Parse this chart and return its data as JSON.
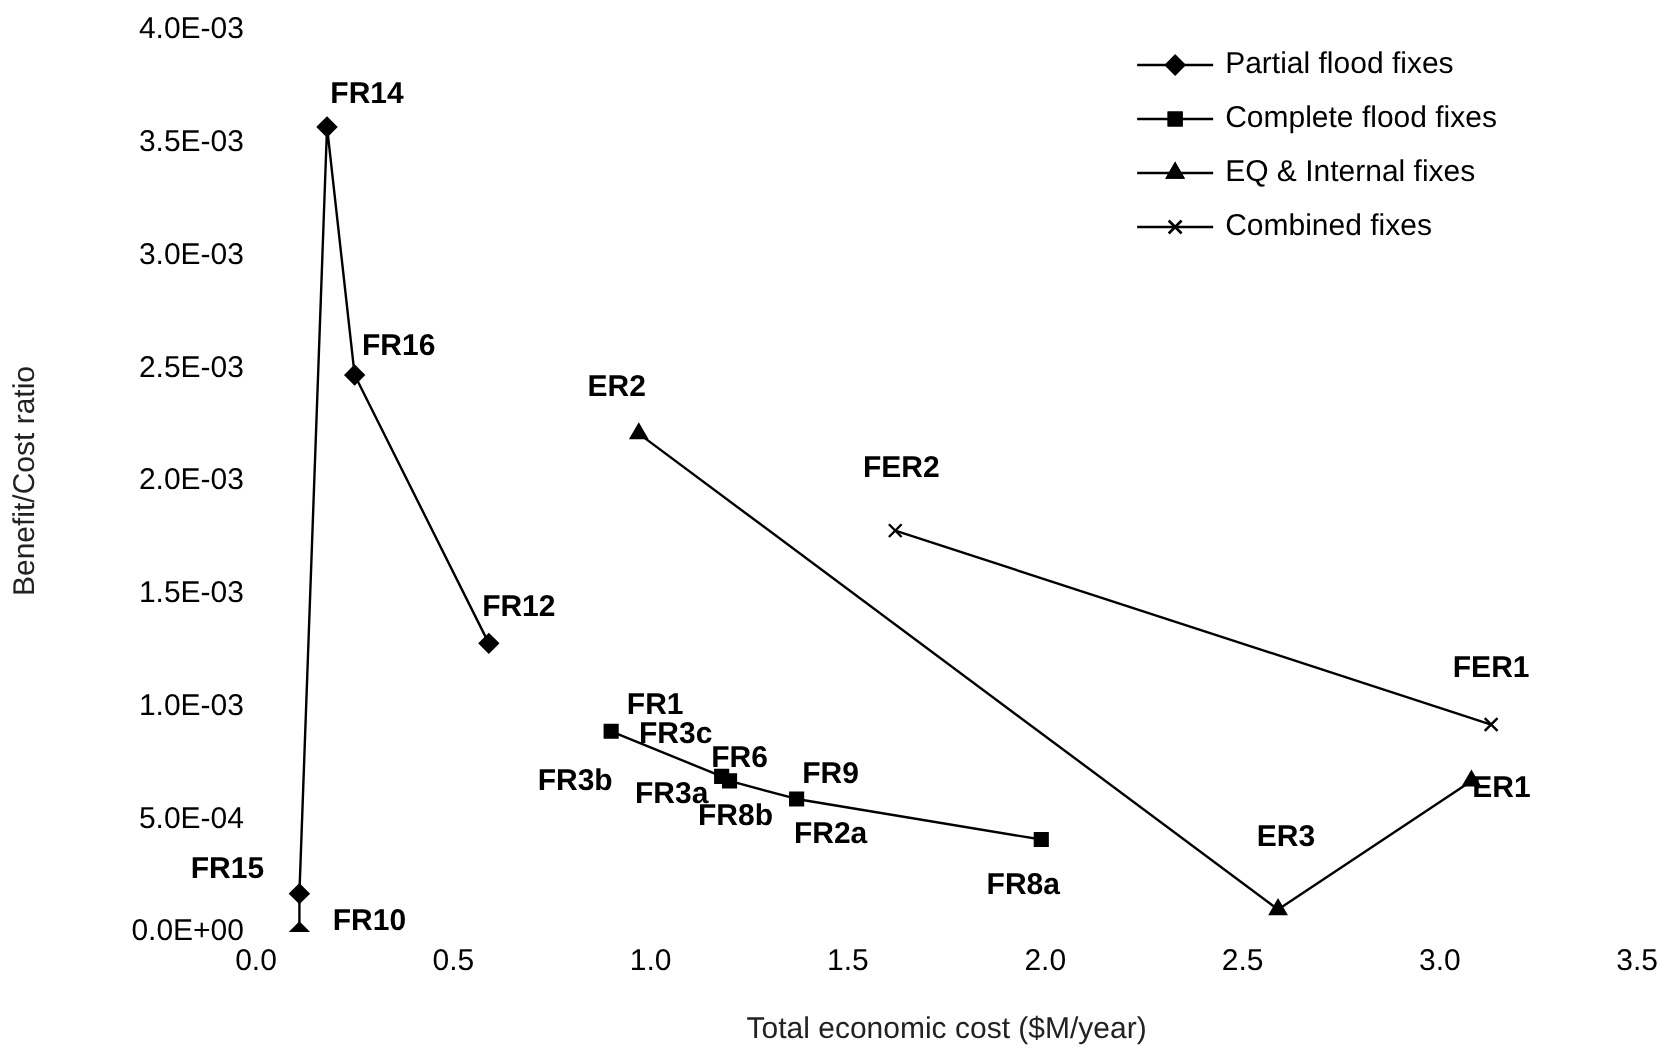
{
  "chart_data": {
    "type": "line",
    "xlabel": "Total economic cost ($M/year)",
    "ylabel": "Benefit/Cost ratio",
    "xlim": [
      0,
      3.5
    ],
    "xticks": [
      {
        "value": 0,
        "label": "0.0"
      },
      {
        "value": 0.5,
        "label": "0.5"
      },
      {
        "value": 1,
        "label": "1.0"
      },
      {
        "value": 1.5,
        "label": "1.5"
      },
      {
        "value": 2,
        "label": "2.0"
      },
      {
        "value": 2.5,
        "label": "2.5"
      },
      {
        "value": 3,
        "label": "3.0"
      },
      {
        "value": 3.5,
        "label": "3.5"
      }
    ],
    "ylim": [
      0,
      0.004
    ],
    "yticks": [
      {
        "value": 0,
        "label": "0.0E+00"
      },
      {
        "value": 0.0005,
        "label": "5.0E-04"
      },
      {
        "value": 0.001,
        "label": "1.0E-03"
      },
      {
        "value": 0.0015,
        "label": "1.5E-03"
      },
      {
        "value": 0.002,
        "label": "2.0E-03"
      },
      {
        "value": 0.0025,
        "label": "2.5E-03"
      },
      {
        "value": 0.003,
        "label": "3.0E-03"
      },
      {
        "value": 0.0035,
        "label": "3.5E-03"
      },
      {
        "value": 0.004,
        "label": "4.0E-03"
      }
    ],
    "grid": false,
    "legend": "top right",
    "line_style": "solid",
    "series": [
      {
        "name": "Partial flood fixes",
        "color": "#000000",
        "marker": "diamond",
        "x": [
          0.11,
          0.11,
          0.18,
          0.25,
          0.59
        ],
        "values": [
          0,
          0.00017,
          0.00357,
          0.00247,
          0.00128
        ]
      },
      {
        "name": "Complete flood fixes",
        "color": "#000000",
        "marker": "square",
        "x": [
          0.9,
          1.18,
          1.2,
          1.37,
          1.99
        ],
        "values": [
          0.00089,
          0.00069,
          0.00067,
          0.00059,
          0.00041
        ]
      },
      {
        "name": "EQ & Internal fixes",
        "color": "#000000",
        "marker": "triangle",
        "x": [
          0.97,
          2.59,
          3.08
        ],
        "values": [
          0.00221,
          0.0001,
          0.00067
        ]
      },
      {
        "name": "Combined fixes",
        "color": "#000000",
        "marker": "cross",
        "x": [
          1.62,
          3.13
        ],
        "values": [
          0.00178,
          0.00092
        ]
      }
    ],
    "annotations": [
      {
        "text": "FR10",
        "x": 0.11,
        "y": 0
      },
      {
        "text": "FR15",
        "x": 0.11,
        "y": 0.00017
      },
      {
        "text": "FR14",
        "x": 0.18,
        "y": 0.00357
      },
      {
        "text": "FR16",
        "x": 0.25,
        "y": 0.00247
      },
      {
        "text": "FR12",
        "x": 0.59,
        "y": 0.00128
      },
      {
        "text": "FR1",
        "x": 0.9,
        "y": 0.00089
      },
      {
        "text": "FR3b",
        "x": 0.9,
        "y": 0.00089
      },
      {
        "text": "FR3c",
        "x": 1.18,
        "y": 0.00069
      },
      {
        "text": "FR3a",
        "x": 1.18,
        "y": 0.00069
      },
      {
        "text": "FR6",
        "x": 1.2,
        "y": 0.00067
      },
      {
        "text": "FR8b",
        "x": 1.2,
        "y": 0.00067
      },
      {
        "text": "FR9",
        "x": 1.37,
        "y": 0.00059
      },
      {
        "text": "FR2a",
        "x": 1.37,
        "y": 0.00059
      },
      {
        "text": "FR8a",
        "x": 1.99,
        "y": 0.00041
      },
      {
        "text": "ER2",
        "x": 0.97,
        "y": 0.00221
      },
      {
        "text": "ER3",
        "x": 2.59,
        "y": 0.0001
      },
      {
        "text": "ER1",
        "x": 3.08,
        "y": 0.00067
      },
      {
        "text": "FER2",
        "x": 1.62,
        "y": 0.00178
      },
      {
        "text": "FER1",
        "x": 3.13,
        "y": 0.00092
      }
    ]
  }
}
